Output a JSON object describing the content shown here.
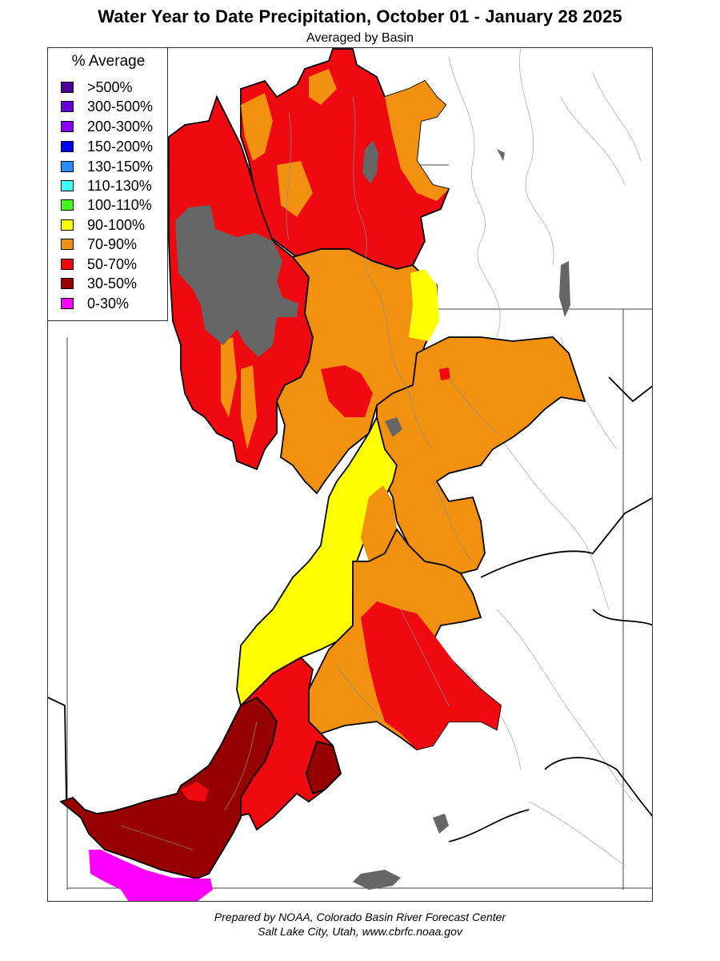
{
  "title": "Water Year to Date Precipitation, October 01  - January 28 2025",
  "subtitle": "Averaged by Basin",
  "legend": {
    "title": "% Average",
    "items": [
      {
        "label": ">500%",
        "color": "#4b0096"
      },
      {
        "label": "300-500%",
        "color": "#6a00d8"
      },
      {
        "label": "200-300%",
        "color": "#8a00ff"
      },
      {
        "label": "150-200%",
        "color": "#0000ff"
      },
      {
        "label": "130-150%",
        "color": "#2a8cff"
      },
      {
        "label": "110-130%",
        "color": "#40ffff"
      },
      {
        "label": "100-110%",
        "color": "#40ff20"
      },
      {
        "label": "90-100%",
        "color": "#ffff00"
      },
      {
        "label": "70-90%",
        "color": "#f2900f"
      },
      {
        "label": "50-70%",
        "color": "#ee0a10"
      },
      {
        "label": "30-50%",
        "color": "#960000"
      },
      {
        "label": "0-30%",
        "color": "#ff00ff"
      }
    ]
  },
  "colors": {
    "no_data": "#666666",
    "basin_border": "#000000",
    "river": "#9a9a9a",
    "lake": "#666666"
  },
  "footer": {
    "line1": "Prepared by NOAA, Colorado Basin River Forecast Center",
    "line2": "Salt Lake City, Utah, www.cbrfc.noaa.gov"
  }
}
